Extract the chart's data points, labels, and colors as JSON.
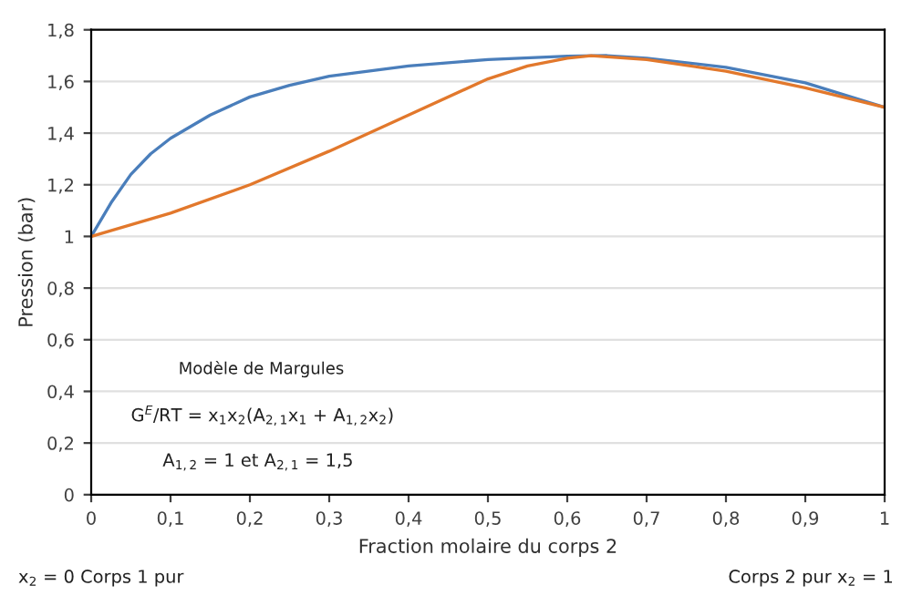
{
  "chart_data": {
    "type": "line",
    "xlabel": "Fraction molaire du corps 2",
    "ylabel": "Pression (bar)",
    "series": [
      {
        "color": "#4a7ebb",
        "x": [
          0,
          0.025,
          0.05,
          0.075,
          0.1,
          0.15,
          0.2,
          0.25,
          0.3,
          0.4,
          0.5,
          0.6,
          0.65,
          0.7,
          0.8,
          0.9,
          1.0
        ],
        "values": [
          1.0,
          1.13,
          1.24,
          1.32,
          1.38,
          1.47,
          1.54,
          1.585,
          1.62,
          1.66,
          1.685,
          1.698,
          1.7,
          1.69,
          1.655,
          1.595,
          1.5
        ]
      },
      {
        "color": "#e2782c",
        "x": [
          0,
          0.1,
          0.2,
          0.3,
          0.4,
          0.5,
          0.55,
          0.6,
          0.63,
          0.7,
          0.8,
          0.9,
          1.0
        ],
        "values": [
          1.0,
          1.09,
          1.2,
          1.33,
          1.47,
          1.61,
          1.66,
          1.69,
          1.7,
          1.685,
          1.64,
          1.575,
          1.5
        ]
      }
    ],
    "xlim": [
      0,
      1
    ],
    "ylim": [
      0,
      1.8
    ],
    "xticks": [
      0,
      {
        "value": 0.1,
        "label": "0,1"
      },
      {
        "value": 0.2,
        "label": "0,2"
      },
      {
        "value": 0.3,
        "label": "0,3"
      },
      {
        "value": 0.4,
        "label": "0,4"
      },
      {
        "value": 0.5,
        "label": "0,5"
      },
      {
        "value": 0.6,
        "label": "0,6"
      },
      {
        "value": 0.7,
        "label": "0,7"
      },
      {
        "value": 0.8,
        "label": "0,8"
      },
      {
        "value": 0.9,
        "label": "0,9"
      },
      1
    ],
    "yticks": [
      0,
      {
        "value": 0.2,
        "label": "0,2"
      },
      {
        "value": 0.4,
        "label": "0,4"
      },
      {
        "value": 0.6,
        "label": "0,6"
      },
      {
        "value": 0.8,
        "label": "0,8"
      },
      1,
      {
        "value": 1.2,
        "label": "1,2"
      },
      {
        "value": 1.4,
        "label": "1,4"
      },
      {
        "value": 1.6,
        "label": "1,6"
      },
      {
        "value": 1.8,
        "label": "1,8"
      }
    ],
    "grid": "y",
    "legend": false,
    "marker": "none",
    "line_style": "solid",
    "annotations": [
      "Modèle de Margules",
      "G$^{E}$/RT = x$_{1}$x$_{2}$(A$_{2,1}$x$_{1}$ + A$_{1,2}$x$_{2}$)",
      "A$_{1,2}$ = 1 et A$_{2,1}$ = 1,5",
      "x$_{2}$ = 0 Corps 1 pur",
      "Corps 2 pur x$_{2}$ = 1"
    ]
  }
}
